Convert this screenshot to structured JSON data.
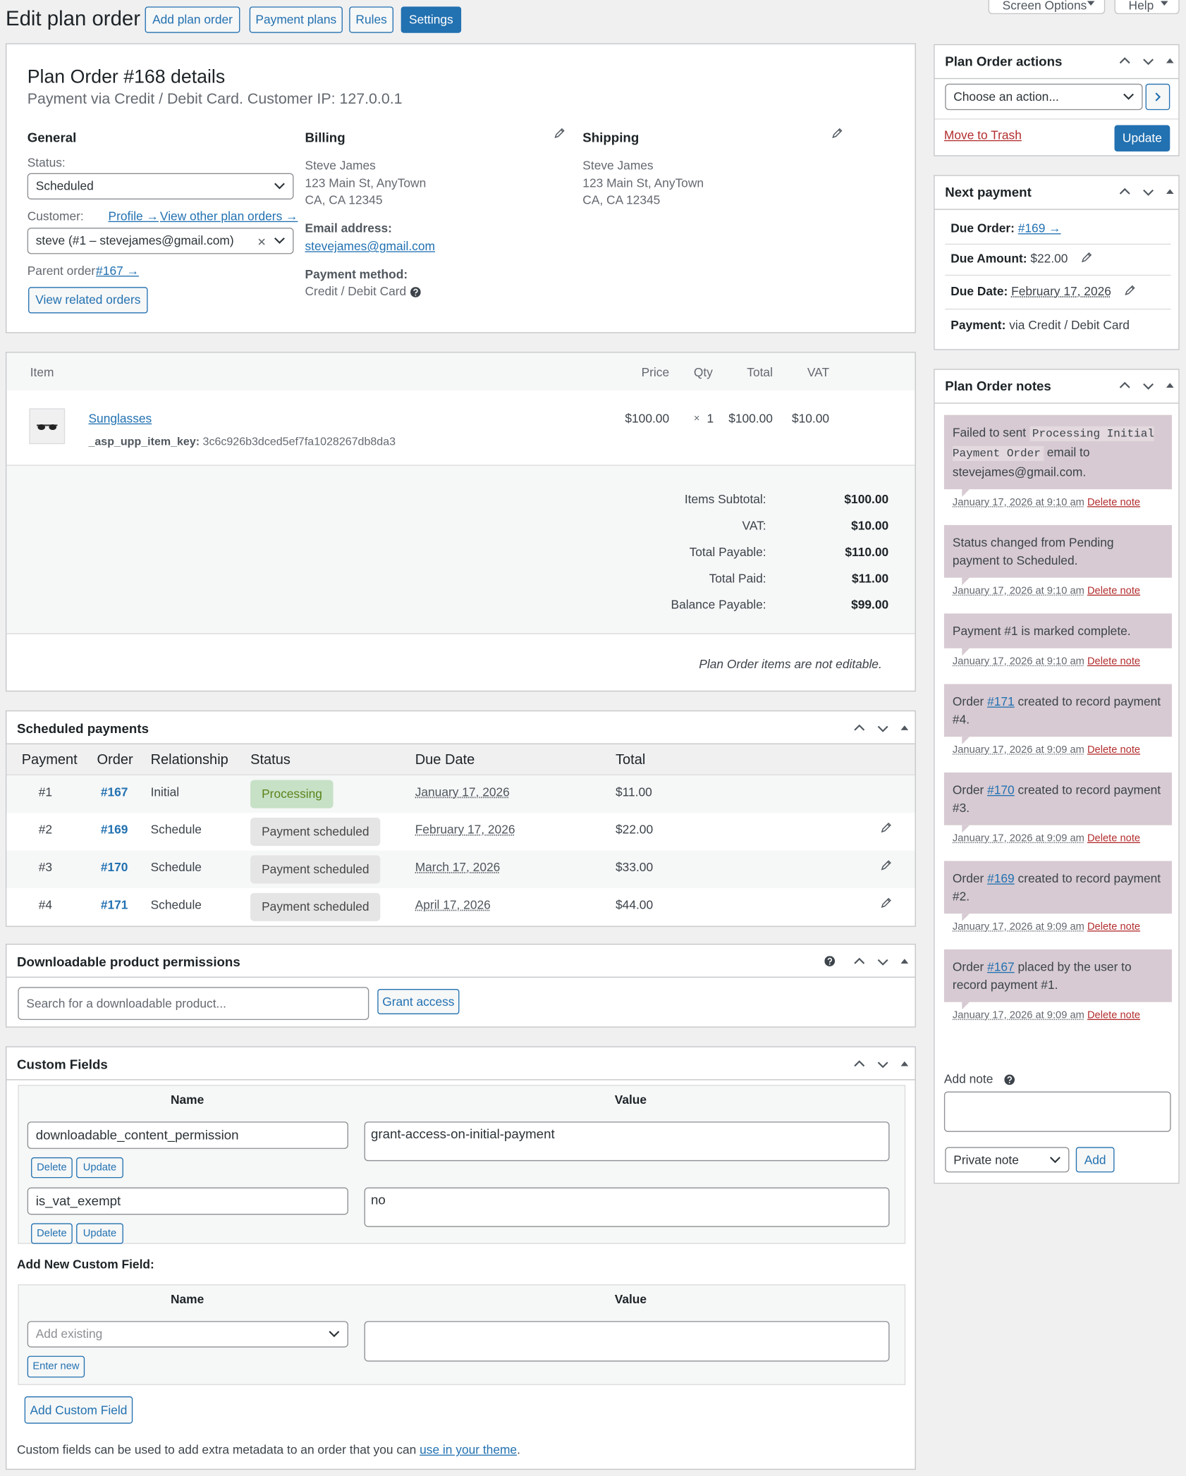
{
  "header": {
    "title": "Edit plan order",
    "buttons": [
      "Add plan order",
      "Payment plans",
      "Rules",
      "Settings"
    ],
    "screen_options": "Screen Options",
    "help": "Help"
  },
  "details": {
    "title": "Plan Order #168 details",
    "subtitle": "Payment via Credit / Debit Card. Customer IP: 127.0.0.1",
    "general": {
      "heading": "General",
      "status_label": "Status:",
      "status": "Scheduled",
      "customer_label": "Customer:",
      "profile_link": "Profile →",
      "other_orders_link": "View other plan orders →",
      "customer": "steve (#1 – stevejames@gmail.com)",
      "parent_label": "Parent order:",
      "parent_link": "#167 →",
      "related_button": "View related orders"
    },
    "billing": {
      "heading": "Billing",
      "address": [
        "Steve James",
        "123 Main St, AnyTown",
        "CA, CA 12345"
      ],
      "email_label": "Email address:",
      "email": "stevejames@gmail.com",
      "payment_label": "Payment method:",
      "payment": "Credit / Debit Card"
    },
    "shipping": {
      "heading": "Shipping",
      "address": [
        "Steve James",
        "123 Main St, AnyTown",
        "CA, CA 12345"
      ]
    }
  },
  "items": {
    "columns": [
      "Item",
      "Price",
      "Qty",
      "Total",
      "VAT"
    ],
    "row": {
      "name": "Sunglasses",
      "meta_key": "_asp_upp_item_key:",
      "meta_value": "3c6c926b3dced5ef7fa1028267db8da3",
      "price": "$100.00",
      "qty_sign": "×",
      "qty": "1",
      "total": "$100.00",
      "vat": "$10.00"
    },
    "totals": [
      [
        "Items Subtotal:",
        "$100.00"
      ],
      [
        "VAT:",
        "$10.00"
      ],
      [
        "Total Payable:",
        "$110.00"
      ],
      [
        "Total Paid:",
        "$11.00"
      ],
      [
        "Balance Payable:",
        "$99.00"
      ]
    ],
    "note": "Plan Order items are not editable."
  },
  "scheduled": {
    "title": "Scheduled payments",
    "columns": [
      "Payment",
      "Order",
      "Relationship",
      "Status",
      "Due Date",
      "Total"
    ],
    "rows": [
      {
        "payment": "#1",
        "order": "#167",
        "relationship": "Initial",
        "status": "Processing",
        "badge_color": "#c6e1c6",
        "badge_text_color": "#5b841b",
        "due": "January 17, 2026",
        "total": "$11.00",
        "editable": false
      },
      {
        "payment": "#2",
        "order": "#169",
        "relationship": "Schedule",
        "status": "Payment scheduled",
        "badge_color": "#e5e5e5",
        "badge_text_color": "#454545",
        "due": "February 17, 2026",
        "total": "$22.00",
        "editable": true
      },
      {
        "payment": "#3",
        "order": "#170",
        "relationship": "Schedule",
        "status": "Payment scheduled",
        "badge_color": "#e5e5e5",
        "badge_text_color": "#454545",
        "due": "March 17, 2026",
        "total": "$33.00",
        "editable": true
      },
      {
        "payment": "#4",
        "order": "#171",
        "relationship": "Schedule",
        "status": "Payment scheduled",
        "badge_color": "#e5e5e5",
        "badge_text_color": "#454545",
        "due": "April 17, 2026",
        "total": "$44.00",
        "editable": true
      }
    ]
  },
  "downloads": {
    "title": "Downloadable product permissions",
    "search_placeholder": "Search for a downloadable product...",
    "button": "Grant access"
  },
  "custom_fields": {
    "title": "Custom Fields",
    "columns": [
      "Name",
      "Value"
    ],
    "rows": [
      {
        "name": "downloadable_content_permission",
        "value": "grant-access-on-initial-payment"
      },
      {
        "name": "is_vat_exempt",
        "value": "no"
      }
    ],
    "delete": "Delete",
    "update": "Update",
    "add_heading": "Add New Custom Field:",
    "add_existing": "Add existing",
    "enter_new": "Enter new",
    "add_button": "Add Custom Field",
    "footer": "Custom fields can be used to add extra metadata to an order that you can ",
    "footer_link": "use in your theme",
    "footer_end": "."
  },
  "actions": {
    "title": "Plan Order actions",
    "select": "Choose an action...",
    "trash": "Move to Trash",
    "update": "Update"
  },
  "next_payment": {
    "title": "Next payment",
    "rows": [
      {
        "label": "Due Order:",
        "value": "#169 →"
      },
      {
        "label": "Due Amount:",
        "value": "$22.00"
      },
      {
        "label": "Due Date:",
        "value": "February 17, 2026"
      },
      {
        "label": "Payment:",
        "value": "via Credit / Debit Card"
      }
    ]
  },
  "notes": {
    "title": "Plan Order notes",
    "delete": "Delete note",
    "items": [
      {
        "before": "Failed to sent ",
        "code": "Processing Initial Payment Order",
        "after": " email to stevejames@gmail.com.",
        "date": "January 17, 2026 at 9:10 am"
      },
      {
        "before": "Status changed from Pending payment to Scheduled.",
        "date": "January 17, 2026 at 9:10 am"
      },
      {
        "before": "Payment #1 is marked complete.",
        "date": "January 17, 2026 at 9:10 am"
      },
      {
        "before": "Order ",
        "link": "#171",
        "after": " created to record payment #4.",
        "date": "January 17, 2026 at 9:09 am"
      },
      {
        "before": "Order ",
        "link": "#170",
        "after": " created to record payment #3.",
        "date": "January 17, 2026 at 9:09 am"
      },
      {
        "before": "Order ",
        "link": "#169",
        "after": " created to record payment #2.",
        "date": "January 17, 2026 at 9:09 am"
      },
      {
        "before": "Order ",
        "link": "#167",
        "after": " placed by the user to record payment #1.",
        "date": "January 17, 2026 at 9:09 am"
      }
    ],
    "add_label": "Add note",
    "type": "Private note",
    "add_button": "Add"
  }
}
